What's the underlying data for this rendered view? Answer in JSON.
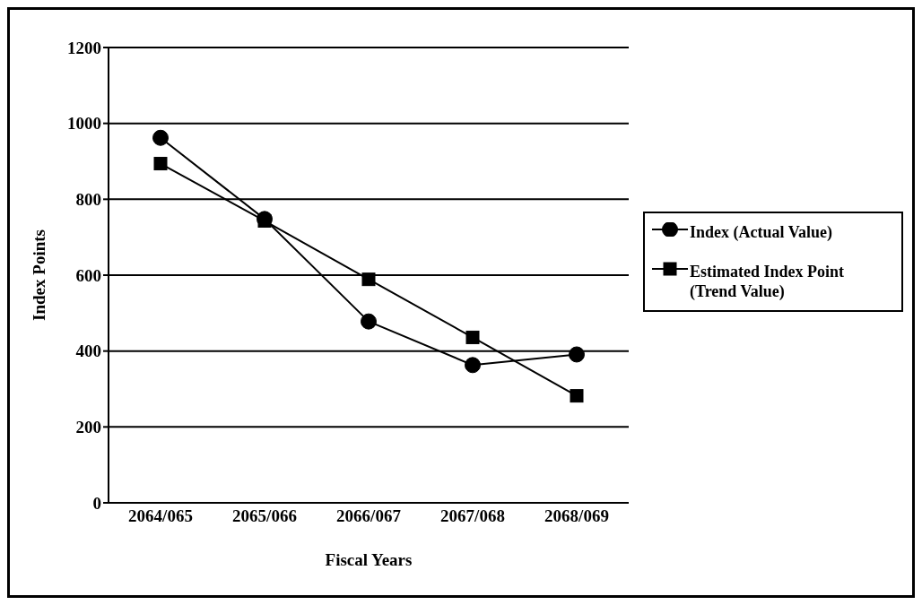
{
  "chart_data": {
    "type": "line",
    "xlabel": "Fiscal Years",
    "ylabel": "Index Points",
    "categories": [
      "2064/065",
      "2065/066",
      "2066/067",
      "2067/068",
      "2068/069"
    ],
    "series": [
      {
        "name": "Index (Actual Value)",
        "color": "#000000",
        "marker": "circle",
        "values": [
          962,
          748,
          478,
          363,
          391
        ]
      },
      {
        "name": "Estimated Index Point (Trend Value)",
        "color": "#000000",
        "marker": "square",
        "values": [
          894,
          743,
          589,
          436,
          282
        ]
      }
    ],
    "ylim": [
      0,
      1200
    ],
    "yticks": [
      0,
      200,
      400,
      600,
      800,
      1000,
      1200
    ],
    "grid": "y",
    "legend": "right",
    "line_style": "solid"
  }
}
